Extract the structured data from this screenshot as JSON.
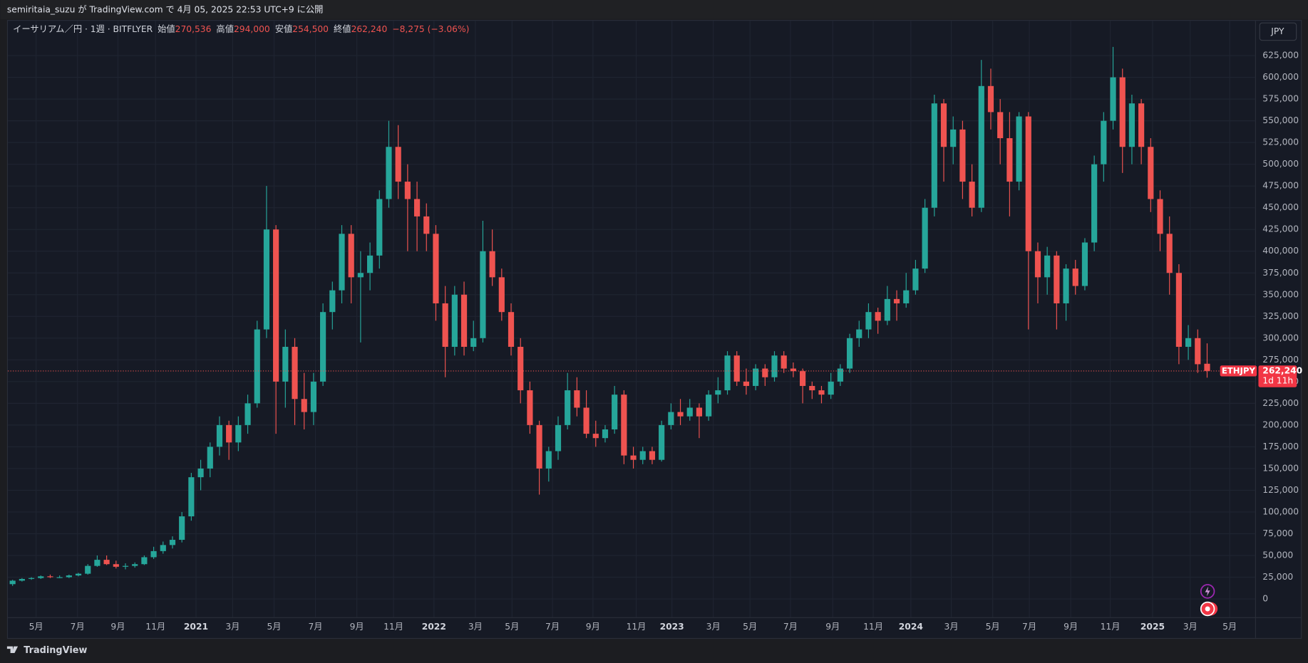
{
  "header": {
    "text": "semiritaia_suzu が TradingView.com で 4月 05, 2025 22:53 UTC+9 に公開"
  },
  "footer": {
    "brand": "TradingView"
  },
  "currency_button": "JPY",
  "legend": {
    "name": "イーサリアム／円 · 1週 · BITFLYER",
    "open_label": "始値",
    "open": "270,536",
    "high_label": "高値",
    "high": "294,000",
    "low_label": "安値",
    "low": "254,500",
    "close_label": "終値",
    "close": "262,240",
    "change": "−8,275 (−3.06%)"
  },
  "chart_data": {
    "type": "candlestick",
    "up_color": "#26a69a",
    "down_color": "#ef5350",
    "grid": true,
    "last_price": {
      "value": 262240,
      "label": "262,240"
    },
    "symbol": "ETHJPY",
    "countdown": "1d 11h",
    "xlim": [
      -0.5,
      132.1
    ],
    "ylim": [
      -21000,
      665000
    ],
    "xticks": [
      {
        "value": 2.5,
        "label": "5月"
      },
      {
        "value": 6.9,
        "label": "7月"
      },
      {
        "value": 11.2,
        "label": "9月"
      },
      {
        "value": 15.2,
        "label": "11月"
      },
      {
        "value": 19.5,
        "label": "2021"
      },
      {
        "value": 23.4,
        "label": "3月"
      },
      {
        "value": 27.8,
        "label": "5月"
      },
      {
        "value": 32.2,
        "label": "7月"
      },
      {
        "value": 36.6,
        "label": "9月"
      },
      {
        "value": 40.5,
        "label": "11月"
      },
      {
        "value": 44.8,
        "label": "2022"
      },
      {
        "value": 49.2,
        "label": "3月"
      },
      {
        "value": 53.1,
        "label": "5月"
      },
      {
        "value": 57.4,
        "label": "7月"
      },
      {
        "value": 61.7,
        "label": "9月"
      },
      {
        "value": 66.3,
        "label": "11月"
      },
      {
        "value": 70.1,
        "label": "2023"
      },
      {
        "value": 74.5,
        "label": "3月"
      },
      {
        "value": 78.4,
        "label": "5月"
      },
      {
        "value": 82.7,
        "label": "7月"
      },
      {
        "value": 87.2,
        "label": "9月"
      },
      {
        "value": 91.5,
        "label": "11月"
      },
      {
        "value": 95.5,
        "label": "2024"
      },
      {
        "value": 99.8,
        "label": "3月"
      },
      {
        "value": 104.2,
        "label": "5月"
      },
      {
        "value": 108.1,
        "label": "7月"
      },
      {
        "value": 112.5,
        "label": "9月"
      },
      {
        "value": 116.7,
        "label": "11月"
      },
      {
        "value": 121.2,
        "label": "2025"
      },
      {
        "value": 125.2,
        "label": "3月"
      },
      {
        "value": 129.4,
        "label": "5月"
      }
    ],
    "yticks": [
      0,
      {
        "value": 25000,
        "label": "25,000"
      },
      {
        "value": 50000,
        "label": "50,000"
      },
      {
        "value": 75000,
        "label": "75,000"
      },
      {
        "value": 100000,
        "label": "100,000"
      },
      {
        "value": 125000,
        "label": "125,000"
      },
      {
        "value": 150000,
        "label": "150,000"
      },
      {
        "value": 175000,
        "label": "175,000"
      },
      {
        "value": 200000,
        "label": "200,000"
      },
      {
        "value": 225000,
        "label": "225,000"
      },
      {
        "value": 250000,
        "label": "250,000"
      },
      {
        "value": 275000,
        "label": "275,000"
      },
      {
        "value": 300000,
        "label": "300,000"
      },
      {
        "value": 325000,
        "label": "325,000"
      },
      {
        "value": 350000,
        "label": "350,000"
      },
      {
        "value": 375000,
        "label": "375,000"
      },
      {
        "value": 400000,
        "label": "400,000"
      },
      {
        "value": 425000,
        "label": "425,000"
      },
      {
        "value": 450000,
        "label": "450,000"
      },
      {
        "value": 475000,
        "label": "475,000"
      },
      {
        "value": 500000,
        "label": "500,000"
      },
      {
        "value": 525000,
        "label": "525,000"
      },
      {
        "value": 550000,
        "label": "550,000"
      },
      {
        "value": 575000,
        "label": "575,000"
      },
      {
        "value": 600000,
        "label": "600,000"
      },
      {
        "value": 625000,
        "label": "625,000"
      }
    ],
    "ohlc": [
      [
        17000,
        22000,
        15000,
        21000
      ],
      [
        21000,
        24000,
        20000,
        23000
      ],
      [
        23000,
        25000,
        22000,
        24000
      ],
      [
        24000,
        27000,
        23000,
        26000
      ],
      [
        26000,
        28000,
        24000,
        25000
      ],
      [
        25000,
        27000,
        24000,
        25000
      ],
      [
        25000,
        28000,
        24000,
        27000
      ],
      [
        27000,
        30000,
        26000,
        29000
      ],
      [
        29000,
        40000,
        28000,
        38000
      ],
      [
        38000,
        50000,
        37000,
        45000
      ],
      [
        45000,
        50000,
        39000,
        40000
      ],
      [
        40000,
        44000,
        35000,
        37000
      ],
      [
        37000,
        41000,
        34000,
        38000
      ],
      [
        38000,
        42000,
        36000,
        40000
      ],
      [
        40000,
        50000,
        39000,
        48000
      ],
      [
        48000,
        60000,
        46000,
        55000
      ],
      [
        55000,
        66000,
        52000,
        62000
      ],
      [
        62000,
        72000,
        58000,
        68000
      ],
      [
        68000,
        100000,
        65000,
        95000
      ],
      [
        95000,
        145000,
        90000,
        140000
      ],
      [
        140000,
        160000,
        125000,
        150000
      ],
      [
        150000,
        180000,
        140000,
        175000
      ],
      [
        175000,
        210000,
        165000,
        200000
      ],
      [
        200000,
        205000,
        160000,
        180000
      ],
      [
        180000,
        210000,
        170000,
        200000
      ],
      [
        200000,
        235000,
        190000,
        225000
      ],
      [
        225000,
        320000,
        220000,
        310000
      ],
      [
        310000,
        475000,
        300000,
        425000
      ],
      [
        425000,
        430000,
        190000,
        250000
      ],
      [
        250000,
        310000,
        220000,
        290000
      ],
      [
        290000,
        300000,
        200000,
        230000
      ],
      [
        230000,
        260000,
        195000,
        215000
      ],
      [
        215000,
        260000,
        200000,
        250000
      ],
      [
        250000,
        340000,
        245000,
        330000
      ],
      [
        330000,
        365000,
        310000,
        355000
      ],
      [
        355000,
        430000,
        340000,
        420000
      ],
      [
        420000,
        430000,
        340000,
        370000
      ],
      [
        370000,
        400000,
        295000,
        375000
      ],
      [
        375000,
        410000,
        355000,
        395000
      ],
      [
        395000,
        470000,
        380000,
        460000
      ],
      [
        460000,
        550000,
        450000,
        520000
      ],
      [
        520000,
        545000,
        460000,
        480000
      ],
      [
        480000,
        500000,
        400000,
        460000
      ],
      [
        460000,
        480000,
        400000,
        440000
      ],
      [
        440000,
        455000,
        400000,
        420000
      ],
      [
        420000,
        430000,
        320000,
        340000
      ],
      [
        340000,
        360000,
        255000,
        290000
      ],
      [
        290000,
        360000,
        280000,
        350000
      ],
      [
        350000,
        365000,
        280000,
        290000
      ],
      [
        290000,
        320000,
        285000,
        300000
      ],
      [
        300000,
        435000,
        295000,
        400000
      ],
      [
        400000,
        425000,
        360000,
        370000
      ],
      [
        370000,
        380000,
        320000,
        330000
      ],
      [
        330000,
        340000,
        280000,
        290000
      ],
      [
        290000,
        300000,
        225000,
        240000
      ],
      [
        240000,
        250000,
        190000,
        200000
      ],
      [
        200000,
        205000,
        120000,
        150000
      ],
      [
        150000,
        175000,
        135000,
        170000
      ],
      [
        170000,
        210000,
        160000,
        200000
      ],
      [
        200000,
        260000,
        195000,
        240000
      ],
      [
        240000,
        255000,
        210000,
        220000
      ],
      [
        220000,
        240000,
        185000,
        190000
      ],
      [
        190000,
        205000,
        175000,
        185000
      ],
      [
        185000,
        200000,
        180000,
        195000
      ],
      [
        195000,
        245000,
        190000,
        235000
      ],
      [
        235000,
        240000,
        155000,
        165000
      ],
      [
        165000,
        175000,
        150000,
        160000
      ],
      [
        160000,
        175000,
        155000,
        170000
      ],
      [
        170000,
        175000,
        155000,
        160000
      ],
      [
        160000,
        205000,
        158000,
        200000
      ],
      [
        200000,
        225000,
        195000,
        215000
      ],
      [
        215000,
        230000,
        200000,
        210000
      ],
      [
        210000,
        230000,
        205000,
        220000
      ],
      [
        220000,
        225000,
        185000,
        210000
      ],
      [
        210000,
        240000,
        205000,
        235000
      ],
      [
        235000,
        255000,
        225000,
        240000
      ],
      [
        240000,
        285000,
        235000,
        280000
      ],
      [
        280000,
        285000,
        245000,
        250000
      ],
      [
        250000,
        265000,
        235000,
        245000
      ],
      [
        245000,
        270000,
        240000,
        265000
      ],
      [
        265000,
        270000,
        245000,
        255000
      ],
      [
        255000,
        285000,
        250000,
        280000
      ],
      [
        280000,
        285000,
        260000,
        265000
      ],
      [
        265000,
        272000,
        255000,
        262000
      ],
      [
        262000,
        265000,
        225000,
        245000
      ],
      [
        245000,
        250000,
        230000,
        240000
      ],
      [
        240000,
        245000,
        225000,
        235000
      ],
      [
        235000,
        260000,
        230000,
        250000
      ],
      [
        250000,
        270000,
        245000,
        265000
      ],
      [
        265000,
        305000,
        260000,
        300000
      ],
      [
        300000,
        320000,
        290000,
        310000
      ],
      [
        310000,
        340000,
        300000,
        330000
      ],
      [
        330000,
        335000,
        305000,
        320000
      ],
      [
        320000,
        360000,
        315000,
        345000
      ],
      [
        345000,
        355000,
        320000,
        340000
      ],
      [
        340000,
        375000,
        335000,
        355000
      ],
      [
        355000,
        390000,
        350000,
        380000
      ],
      [
        380000,
        460000,
        375000,
        450000
      ],
      [
        450000,
        580000,
        440000,
        570000
      ],
      [
        570000,
        575000,
        480000,
        520000
      ],
      [
        520000,
        555000,
        500000,
        540000
      ],
      [
        540000,
        550000,
        460000,
        480000
      ],
      [
        480000,
        500000,
        440000,
        450000
      ],
      [
        450000,
        620000,
        445000,
        590000
      ],
      [
        590000,
        610000,
        540000,
        560000
      ],
      [
        560000,
        575000,
        500000,
        530000
      ],
      [
        530000,
        560000,
        440000,
        480000
      ],
      [
        480000,
        560000,
        470000,
        555000
      ],
      [
        555000,
        560000,
        310000,
        400000
      ],
      [
        400000,
        410000,
        340000,
        370000
      ],
      [
        370000,
        405000,
        350000,
        395000
      ],
      [
        395000,
        400000,
        310000,
        340000
      ],
      [
        340000,
        385000,
        320000,
        380000
      ],
      [
        380000,
        390000,
        350000,
        360000
      ],
      [
        360000,
        415000,
        355000,
        410000
      ],
      [
        410000,
        510000,
        400000,
        500000
      ],
      [
        500000,
        560000,
        480000,
        550000
      ],
      [
        550000,
        635000,
        540000,
        600000
      ],
      [
        600000,
        610000,
        490000,
        520000
      ],
      [
        520000,
        580000,
        500000,
        570000
      ],
      [
        570000,
        575000,
        500000,
        520000
      ],
      [
        520000,
        530000,
        445000,
        460000
      ],
      [
        460000,
        470000,
        400000,
        420000
      ],
      [
        420000,
        440000,
        350000,
        375000
      ],
      [
        375000,
        385000,
        270000,
        290000
      ],
      [
        290000,
        315000,
        275000,
        300000
      ],
      [
        300000,
        310000,
        260000,
        270000
      ],
      [
        270536,
        294000,
        254500,
        262240
      ]
    ]
  }
}
